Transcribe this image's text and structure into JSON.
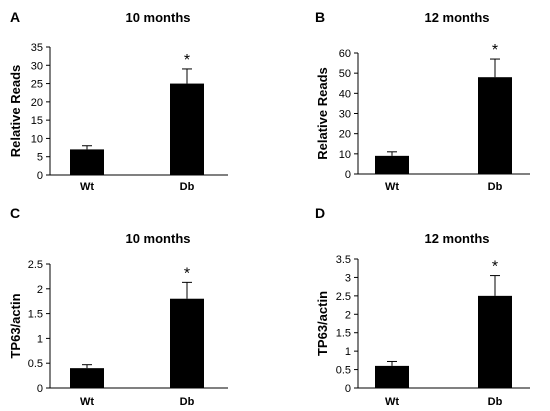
{
  "chart_data": [
    {
      "panel": "A",
      "type": "bar",
      "title": "10 months",
      "ylabel": "Relative  Reads",
      "xlabel": "",
      "categories": [
        "Wt",
        "Db"
      ],
      "values": [
        7,
        25
      ],
      "errors": [
        1,
        4
      ],
      "annotations": [
        "",
        "*"
      ],
      "ylim": [
        0,
        35
      ],
      "yticks": [
        "0",
        "5",
        "10",
        "15",
        "20",
        "25",
        "30",
        "35"
      ],
      "grid": false
    },
    {
      "panel": "B",
      "type": "bar",
      "title": "12 months",
      "ylabel": "Relative  Reads",
      "xlabel": "",
      "categories": [
        "Wt",
        "Db"
      ],
      "values": [
        9,
        48
      ],
      "errors": [
        2,
        9
      ],
      "annotations": [
        "",
        "*"
      ],
      "ylim": [
        0,
        60
      ],
      "yticks": [
        "0",
        "10",
        "20",
        "30",
        "40",
        "50",
        "60"
      ],
      "grid": false
    },
    {
      "panel": "C",
      "type": "bar",
      "title": "10 months",
      "ylabel": "TP63/actin",
      "xlabel": "",
      "categories": [
        "Wt",
        "Db"
      ],
      "values": [
        0.4,
        1.8
      ],
      "errors": [
        0.07,
        0.33
      ],
      "annotations": [
        "",
        "*"
      ],
      "ylim": [
        0,
        2.5
      ],
      "yticks": [
        "0",
        "0.5",
        "1",
        "1.5",
        "2",
        "2.5"
      ],
      "grid": false
    },
    {
      "panel": "D",
      "type": "bar",
      "title": "12 months",
      "ylabel": "TP63/actin",
      "xlabel": "",
      "categories": [
        "Wt",
        "Db"
      ],
      "values": [
        0.6,
        2.5
      ],
      "errors": [
        0.12,
        0.55
      ],
      "annotations": [
        "",
        "*"
      ],
      "ylim": [
        0,
        3.5
      ],
      "yticks": [
        "0",
        "0.5",
        "1",
        "1.5",
        "2",
        "2.5",
        "3",
        "3.5"
      ],
      "grid": false
    }
  ]
}
